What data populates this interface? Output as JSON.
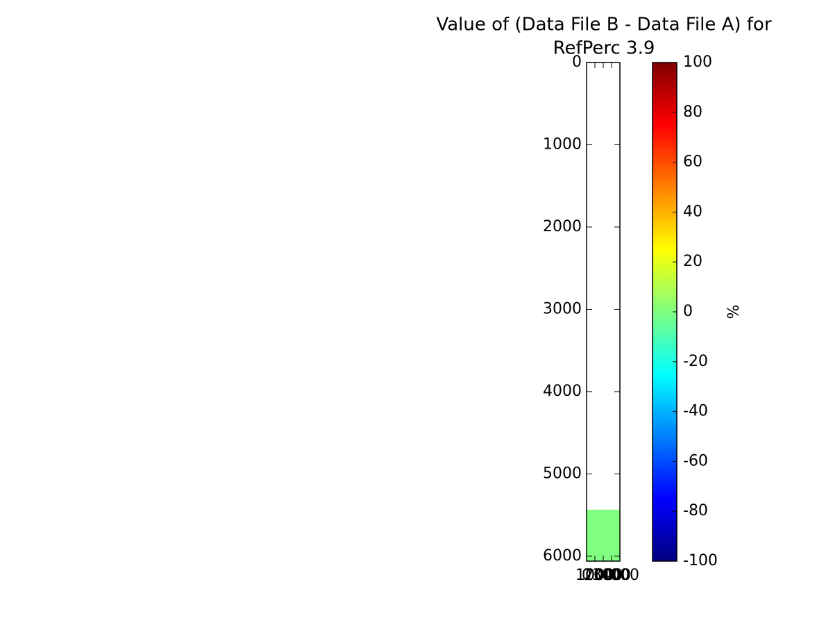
{
  "chart_data": {
    "type": "heatmap",
    "title": [
      "Value of (Data File B - Data File A) for",
      "RefPerc 3.9"
    ],
    "xlim": [
      0,
      4000
    ],
    "xticks": [
      0,
      1000,
      2000,
      3000,
      4000
    ],
    "ylim": [
      6060,
      0
    ],
    "yticks": [
      0,
      1000,
      2000,
      3000,
      4000,
      5000,
      6000
    ],
    "cells": [
      {
        "x0": 0,
        "x1": 4000,
        "y0": 5435,
        "y1": 6060,
        "value": 0
      }
    ],
    "colormap": "jet",
    "colorbar": {
      "label": "%",
      "lim": [
        -100,
        100
      ],
      "ticks": [
        -100,
        -80,
        -60,
        -40,
        -20,
        0,
        20,
        40,
        60,
        80,
        100
      ]
    }
  }
}
